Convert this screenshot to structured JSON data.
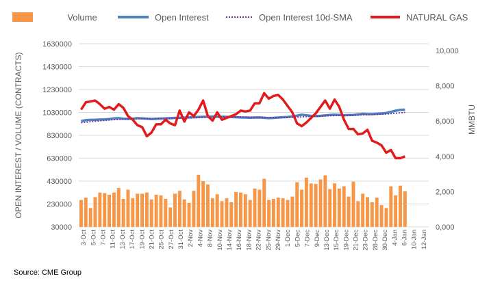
{
  "colors": {
    "volume": "#F79646",
    "open_interest": "#4F81BD",
    "sma": "#7030A0",
    "natural_gas": "#E31A1C",
    "grid": "#D9D9D9",
    "text": "#595959"
  },
  "legend": {
    "volume": "Volume",
    "open_interest": "Open Interest",
    "sma": "Open Interest 10d-SMA",
    "natural_gas": "NATURAL GAS"
  },
  "source": "Source: CME Group",
  "chart_data": {
    "type": "bar",
    "legend_position": "top",
    "grid": true,
    "ylabel": "OPEN INTEREST / VOLUME (CONTRACTS)",
    "y2label": "MMBTU",
    "ylim": [
      30000,
      1630000
    ],
    "y2lim": [
      0,
      10000
    ],
    "yticks": [
      "1630000",
      "1430000",
      "1230000",
      "1030000",
      "830000",
      "630000",
      "430000",
      "230000",
      "30000"
    ],
    "y2ticks": [
      "10,000",
      "8,000",
      "6,000",
      "4,000",
      "2,000",
      "0,000"
    ],
    "x_tick_labels": [
      "3-Oct",
      "5-Oct",
      "7-Oct",
      "11-Oct",
      "13-Oct",
      "17-Oct",
      "19-Oct",
      "21-Oct",
      "25-Oct",
      "27-Oct",
      "31-Oct",
      "2-Nov",
      "4-Nov",
      "8-Nov",
      "10-Nov",
      "14-Nov",
      "16-Nov",
      "18-Nov",
      "22-Nov",
      "25-Nov",
      "29-Nov",
      "1-Dec",
      "5-Dec",
      "7-Dec",
      "9-Dec",
      "13-Dec",
      "15-Dec",
      "19-Dec",
      "21-Dec",
      "23-Dec",
      "28-Dec",
      "30-Dec",
      "4-Jan",
      "6-Jan",
      "10-Jan",
      "12-Jan"
    ],
    "series": [
      {
        "name": "Volume",
        "axis": "left",
        "values": [
          265000,
          285000,
          195000,
          290000,
          330000,
          325000,
          310000,
          330000,
          370000,
          275000,
          355000,
          280000,
          320000,
          320000,
          330000,
          270000,
          310000,
          305000,
          275000,
          200000,
          320000,
          345000,
          270000,
          240000,
          345000,
          485000,
          430000,
          400000,
          280000,
          315000,
          255000,
          280000,
          245000,
          335000,
          330000,
          315000,
          265000,
          365000,
          355000,
          450000,
          265000,
          275000,
          285000,
          280000,
          265000,
          295000,
          420000,
          355000,
          460000,
          410000,
          405000,
          445000,
          480000,
          360000,
          410000,
          365000,
          385000,
          295000,
          425000,
          255000,
          320000,
          290000,
          245000,
          285000,
          220000,
          195000,
          385000,
          305000,
          390000,
          340000
        ]
      },
      {
        "name": "Open Interest",
        "axis": "left",
        "values": [
          955000,
          962000,
          965000,
          966000,
          968000,
          969000,
          972000,
          978000,
          980000,
          975000,
          973000,
          975000,
          980000,
          978000,
          975000,
          972000,
          974000,
          976000,
          978000,
          980000,
          982000,
          983000,
          985000,
          986000,
          988000,
          990000,
          992000,
          993000,
          994000,
          993000,
          992000,
          991000,
          990000,
          988000,
          986000,
          985000,
          984000,
          985000,
          986000,
          983000,
          980000,
          982000,
          985000,
          988000,
          990000,
          995000,
          1002000,
          1010000,
          1005000,
          1000000,
          998000,
          1000000,
          1004000,
          1008000,
          1010000,
          1008000,
          1005000,
          1007000,
          1008000,
          1012000,
          1018000,
          1015000,
          1015000,
          1018000,
          1020000,
          1025000,
          1035000,
          1045000,
          1052000,
          1054000
        ]
      },
      {
        "name": "Open Interest 10d-SMA",
        "axis": "left",
        "values": [
          940000,
          944000,
          948000,
          952000,
          956000,
          960000,
          963000,
          966000,
          968000,
          970000,
          972000,
          973000,
          975000,
          975000,
          976000,
          976000,
          976000,
          977000,
          977000,
          978000,
          979000,
          980000,
          981000,
          982000,
          983000,
          984000,
          986000,
          987000,
          988000,
          989000,
          990000,
          990000,
          990000,
          990000,
          990000,
          989000,
          988000,
          987000,
          987000,
          986000,
          985000,
          985000,
          985000,
          985000,
          986000,
          987000,
          989000,
          991000,
          993000,
          995000,
          996000,
          997000,
          999000,
          1000000,
          1002000,
          1003000,
          1004000,
          1005000,
          1006000,
          1007000,
          1009000,
          1010000,
          1011000,
          1012000,
          1014000,
          1016000,
          1019000,
          1022000,
          1026000,
          1031000
        ]
      },
      {
        "name": "NATURAL GAS",
        "axis": "right",
        "values": [
          6400,
          6800,
          6850,
          6900,
          6700,
          6450,
          6550,
          6400,
          6700,
          6500,
          6050,
          5850,
          5550,
          5450,
          4950,
          5150,
          5600,
          5600,
          5850,
          5650,
          5550,
          6350,
          5750,
          6250,
          6050,
          6400,
          6900,
          6050,
          5800,
          6250,
          5850,
          5950,
          6050,
          6150,
          6350,
          6300,
          6350,
          6750,
          6750,
          7300,
          7000,
          7150,
          7200,
          6950,
          6600,
          6250,
          5650,
          5500,
          5700,
          5950,
          6200,
          6550,
          6900,
          6450,
          6950,
          6550,
          5850,
          5350,
          5350,
          5050,
          5100,
          5300,
          4700,
          4600,
          4450,
          4050,
          4200,
          3750,
          3750,
          3850
        ]
      }
    ]
  }
}
